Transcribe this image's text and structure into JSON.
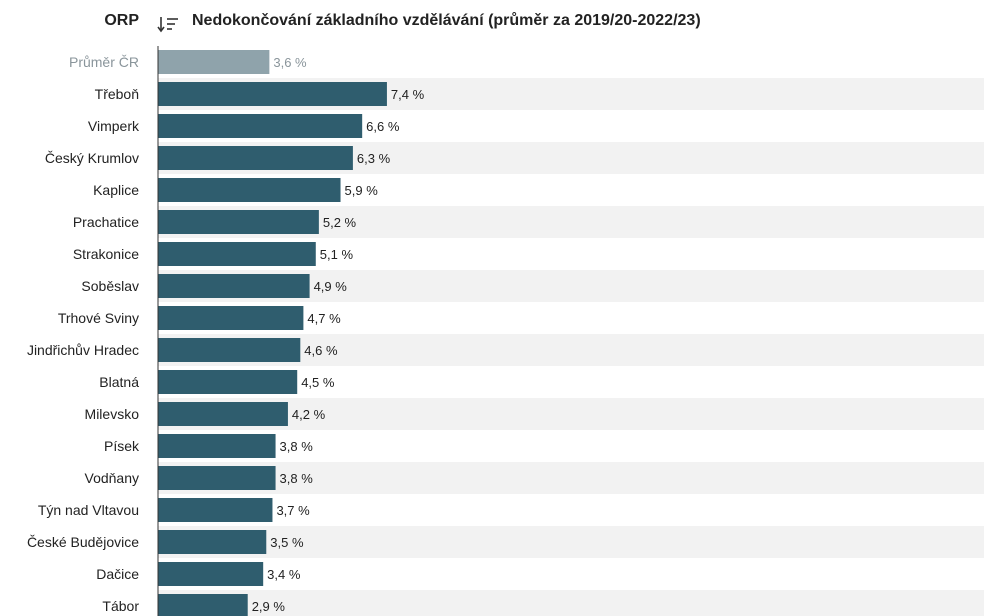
{
  "header": {
    "column_title": "ORP",
    "sort_icon": "sort-descending-icon",
    "chart_title": "Nedokončování základního vzdělávání (průměr za 2019/20-2022/23)"
  },
  "colors": {
    "bar": "#2f5d6e",
    "average_bar": "#8fa3ab",
    "row_stripe": "#f2f2f2"
  },
  "chart_data": {
    "type": "bar",
    "orientation": "horizontal",
    "title": "Nedokončování základního vzdělávání (průměr za 2019/20-2022/23)",
    "categories": [
      "Průměr ČR",
      "Třeboň",
      "Vimperk",
      "Český Krumlov",
      "Kaplice",
      "Prachatice",
      "Strakonice",
      "Soběslav",
      "Trhové Sviny",
      "Jindřichův Hradec",
      "Blatná",
      "Milevsko",
      "Písek",
      "Vodňany",
      "Týn nad Vltavou",
      "České Budějovice",
      "Dačice",
      "Tábor"
    ],
    "values": [
      3.6,
      7.4,
      6.6,
      6.3,
      5.9,
      5.2,
      5.1,
      4.9,
      4.7,
      4.6,
      4.5,
      4.2,
      3.8,
      3.8,
      3.7,
      3.5,
      3.4,
      2.9
    ],
    "value_labels": [
      "3,6 %",
      "7,4 %",
      "6,6 %",
      "6,3 %",
      "5,9 %",
      "5,2 %",
      "5,1 %",
      "4,9 %",
      "4,7 %",
      "4,6 %",
      "4,5 %",
      "4,2 %",
      "3,8 %",
      "3,8 %",
      "3,7 %",
      "3,5 %",
      "3,4 %",
      "2,9 %"
    ],
    "highlight_index": 0,
    "xlim": [
      0,
      26.7
    ],
    "grid": false,
    "unit": "%"
  }
}
